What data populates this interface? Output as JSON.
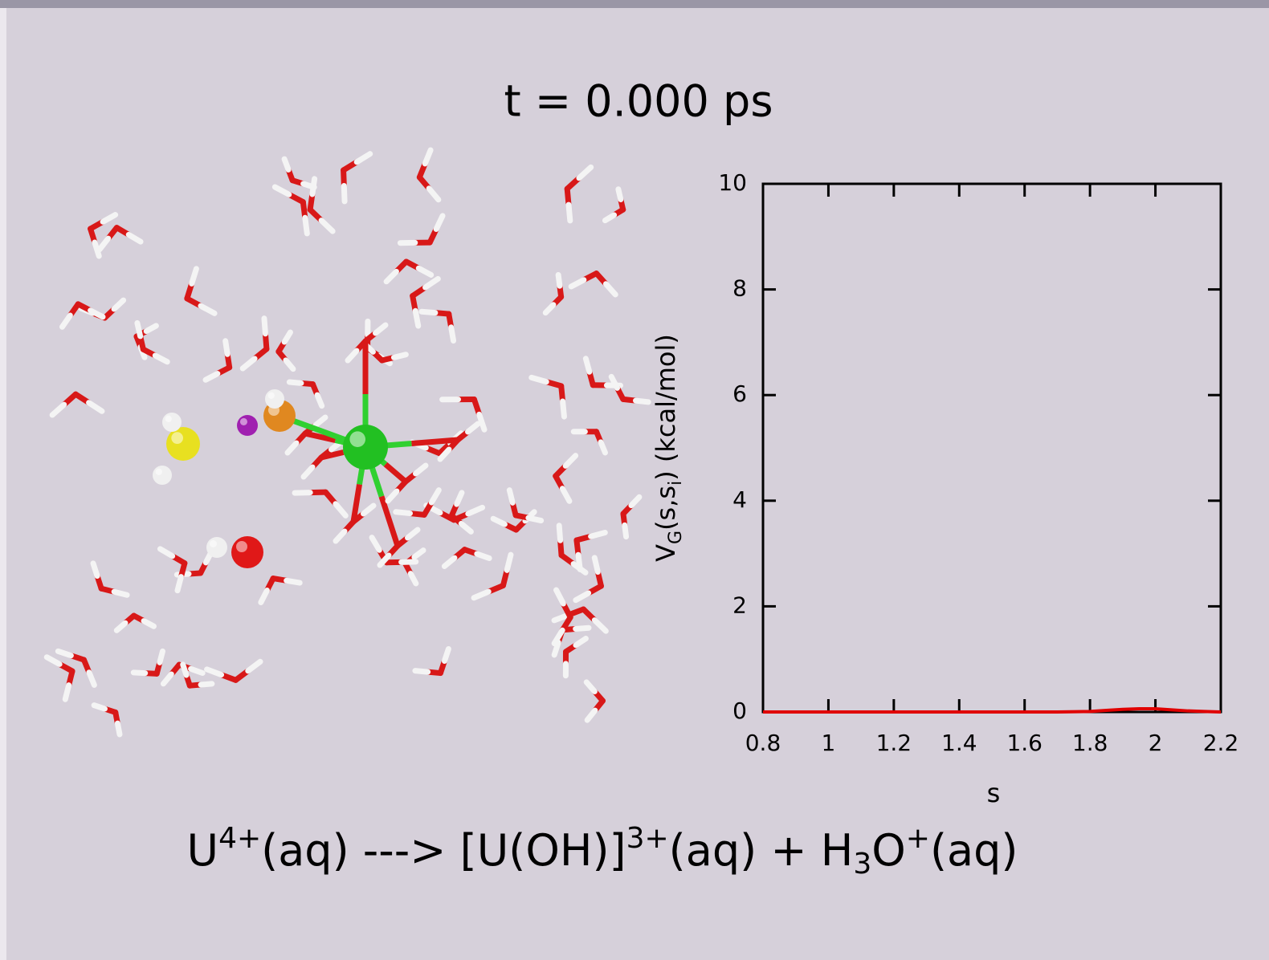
{
  "chart_data": {
    "type": "line",
    "title": "t = 0.000 ps",
    "x_label": "s",
    "y_label": [
      "V",
      "G",
      "(s,s",
      "i",
      ") (kcal/mol)"
    ],
    "caption": [
      "U",
      "4+",
      "(aq) ---> [U(OH)]",
      "3+",
      "(aq) + H",
      "3",
      "O",
      "+",
      "(aq)"
    ],
    "x": [
      0.8,
      0.9,
      1.0,
      1.1,
      1.2,
      1.3,
      1.4,
      1.5,
      1.6,
      1.7,
      1.8,
      1.85,
      1.9,
      1.95,
      2.0,
      2.05,
      2.1,
      2.15,
      2.2
    ],
    "series": [
      {
        "color": "#e00000",
        "values": [
          0,
          0,
          0,
          0,
          0,
          0,
          0,
          0,
          0,
          0,
          0.01,
          0.03,
          0.05,
          0.06,
          0.06,
          0.04,
          0.02,
          0.01,
          0
        ]
      }
    ],
    "xlim": [
      0.8,
      2.2
    ],
    "xticks": [
      0.8,
      1,
      1.2,
      1.4,
      1.6,
      1.8,
      2,
      2.2
    ],
    "ylim": [
      0,
      10
    ],
    "yticks": [
      0,
      2,
      4,
      6,
      8,
      10
    ]
  }
}
